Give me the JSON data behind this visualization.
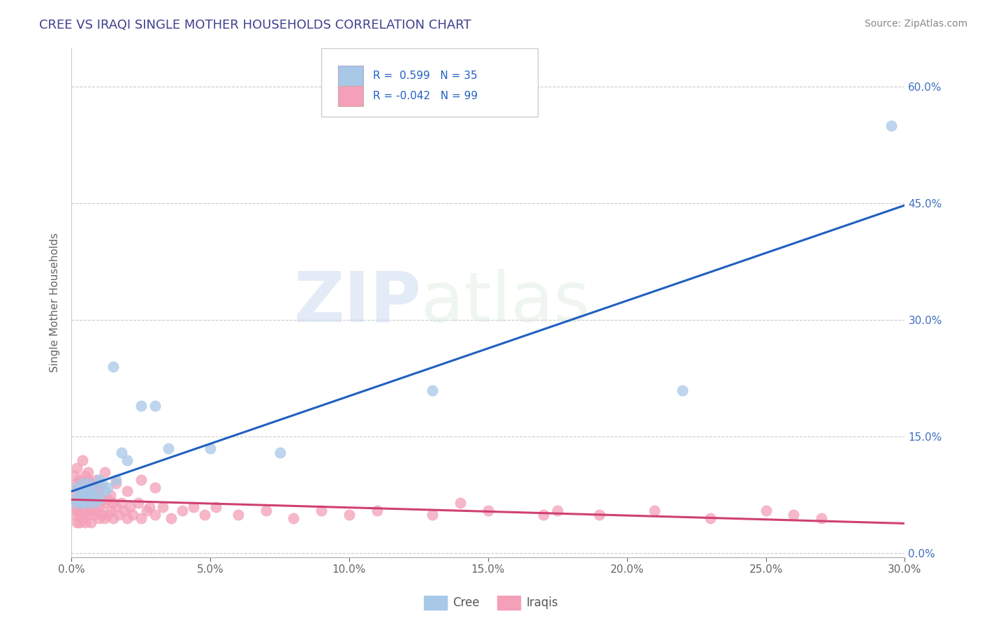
{
  "title": "CREE VS IRAQI SINGLE MOTHER HOUSEHOLDS CORRELATION CHART",
  "source": "Source: ZipAtlas.com",
  "ylabel_label": "Single Mother Households",
  "legend_label1": "Cree",
  "legend_label2": "Iraqis",
  "r1": 0.599,
  "n1": 35,
  "r2": -0.042,
  "n2": 99,
  "xlim": [
    0.0,
    0.3
  ],
  "ylim": [
    -0.005,
    0.65
  ],
  "yticks": [
    0.0,
    0.15,
    0.3,
    0.45,
    0.6
  ],
  "xticks": [
    0.0,
    0.05,
    0.1,
    0.15,
    0.2,
    0.25,
    0.3
  ],
  "cree_color": "#a8c8e8",
  "iraqis_color": "#f4a0b8",
  "cree_line_color": "#2060c0",
  "iraqis_line_color": "#d04070",
  "tick_color": "#4070c0",
  "background_color": "#ffffff",
  "watermark_zip": "ZIP",
  "watermark_atlas": "atlas",
  "title_color": "#404090",
  "title_fontsize": 13,
  "cree_x": [
    0.001,
    0.002,
    0.002,
    0.003,
    0.003,
    0.004,
    0.004,
    0.004,
    0.005,
    0.005,
    0.005,
    0.006,
    0.006,
    0.007,
    0.007,
    0.008,
    0.008,
    0.009,
    0.01,
    0.01,
    0.011,
    0.012,
    0.013,
    0.015,
    0.016,
    0.018,
    0.02,
    0.025,
    0.03,
    0.035,
    0.05,
    0.075,
    0.13,
    0.22,
    0.295
  ],
  "cree_y": [
    0.07,
    0.065,
    0.085,
    0.07,
    0.08,
    0.075,
    0.065,
    0.09,
    0.07,
    0.08,
    0.065,
    0.075,
    0.09,
    0.07,
    0.08,
    0.085,
    0.065,
    0.075,
    0.095,
    0.07,
    0.09,
    0.08,
    0.085,
    0.24,
    0.095,
    0.13,
    0.12,
    0.19,
    0.19,
    0.135,
    0.135,
    0.13,
    0.21,
    0.21,
    0.55
  ],
  "iraqis_x": [
    0.001,
    0.001,
    0.001,
    0.002,
    0.002,
    0.002,
    0.002,
    0.003,
    0.003,
    0.003,
    0.003,
    0.003,
    0.004,
    0.004,
    0.004,
    0.004,
    0.005,
    0.005,
    0.005,
    0.005,
    0.006,
    0.006,
    0.006,
    0.007,
    0.007,
    0.007,
    0.007,
    0.008,
    0.008,
    0.008,
    0.009,
    0.009,
    0.01,
    0.01,
    0.01,
    0.011,
    0.011,
    0.012,
    0.012,
    0.013,
    0.013,
    0.014,
    0.015,
    0.015,
    0.016,
    0.017,
    0.018,
    0.019,
    0.02,
    0.021,
    0.022,
    0.024,
    0.025,
    0.027,
    0.028,
    0.03,
    0.033,
    0.036,
    0.04,
    0.044,
    0.048,
    0.052,
    0.06,
    0.07,
    0.08,
    0.09,
    0.1,
    0.11,
    0.13,
    0.15,
    0.17,
    0.19,
    0.21,
    0.23,
    0.25,
    0.27,
    0.001,
    0.002,
    0.003,
    0.003,
    0.004,
    0.004,
    0.005,
    0.005,
    0.006,
    0.006,
    0.007,
    0.008,
    0.009,
    0.01,
    0.012,
    0.014,
    0.016,
    0.02,
    0.025,
    0.03,
    0.14,
    0.175,
    0.26
  ],
  "iraqis_y": [
    0.06,
    0.08,
    0.05,
    0.07,
    0.09,
    0.055,
    0.04,
    0.065,
    0.075,
    0.05,
    0.085,
    0.04,
    0.06,
    0.08,
    0.045,
    0.09,
    0.055,
    0.07,
    0.04,
    0.08,
    0.05,
    0.065,
    0.085,
    0.055,
    0.07,
    0.04,
    0.08,
    0.05,
    0.065,
    0.085,
    0.055,
    0.07,
    0.045,
    0.06,
    0.08,
    0.05,
    0.07,
    0.045,
    0.065,
    0.05,
    0.07,
    0.055,
    0.065,
    0.045,
    0.06,
    0.05,
    0.065,
    0.055,
    0.045,
    0.06,
    0.05,
    0.065,
    0.045,
    0.055,
    0.06,
    0.05,
    0.06,
    0.045,
    0.055,
    0.06,
    0.05,
    0.06,
    0.05,
    0.055,
    0.045,
    0.055,
    0.05,
    0.055,
    0.05,
    0.055,
    0.05,
    0.05,
    0.055,
    0.045,
    0.055,
    0.045,
    0.1,
    0.11,
    0.09,
    0.095,
    0.12,
    0.085,
    0.1,
    0.08,
    0.095,
    0.105,
    0.09,
    0.08,
    0.095,
    0.085,
    0.105,
    0.075,
    0.09,
    0.08,
    0.095,
    0.085,
    0.065,
    0.055,
    0.05
  ]
}
